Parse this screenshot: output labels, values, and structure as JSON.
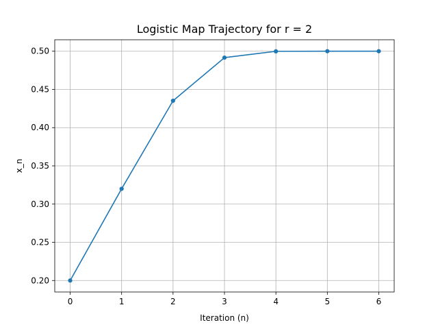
{
  "chart_data": {
    "type": "line",
    "title": "Logistic Map Trajectory for r = 2",
    "xlabel": "Iteration (n)",
    "ylabel": "x_n",
    "x": [
      0,
      1,
      2,
      3,
      4,
      5,
      6
    ],
    "series": [
      {
        "values": [
          0.2,
          0.32,
          0.4352,
          0.49160192,
          0.49985894,
          0.49999996,
          0.5
        ],
        "color": "#1f77b4",
        "marker": "circle"
      }
    ],
    "xlim": [
      -0.3,
      6.3
    ],
    "ylim": [
      0.185,
      0.515
    ],
    "xticks": [
      0,
      1,
      2,
      3,
      4,
      5,
      6
    ],
    "xtick_labels": [
      "0",
      "1",
      "2",
      "3",
      "4",
      "5",
      "6"
    ],
    "yticks": [
      0.2,
      0.25,
      0.3,
      0.35,
      0.4,
      0.45,
      0.5
    ],
    "ytick_labels": [
      "0.20",
      "0.25",
      "0.30",
      "0.35",
      "0.40",
      "0.45",
      "0.50"
    ],
    "grid": true,
    "legend": false
  }
}
